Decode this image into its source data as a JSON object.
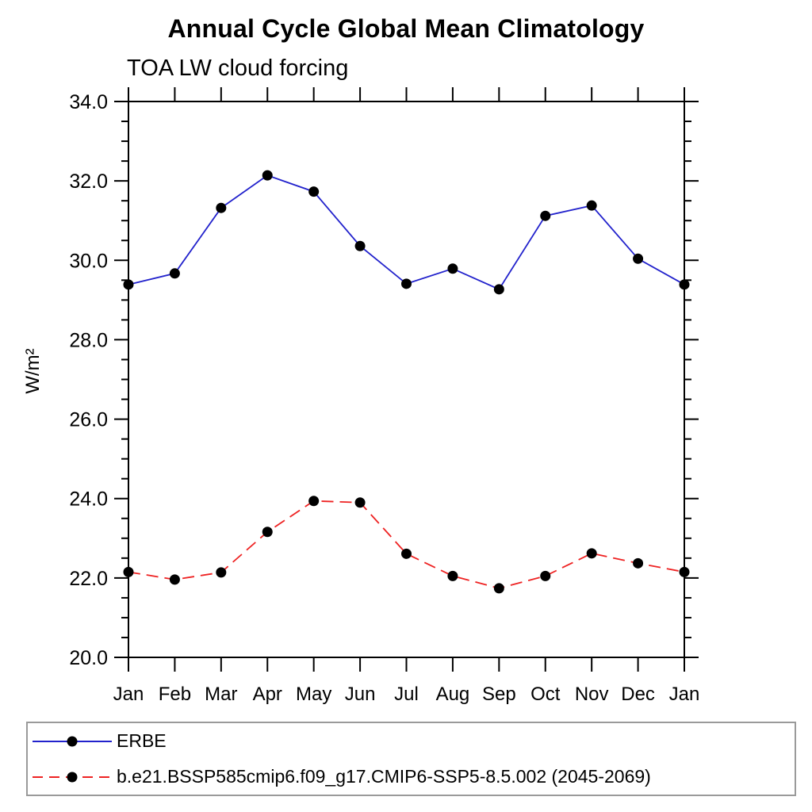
{
  "title": "Annual Cycle Global Mean Climatology",
  "subtitle": "TOA LW cloud forcing",
  "ylabel": "W/m²",
  "colors": {
    "erbe_line": "#2222cc",
    "model_line": "#ee2222",
    "marker": "#000000",
    "axis": "#000000",
    "legend_border": "#9a9a9a"
  },
  "chart_data": {
    "type": "line",
    "title": "Annual Cycle Global Mean Climatology",
    "subtitle": "TOA LW cloud forcing",
    "xlabel": "",
    "ylabel": "W/m²",
    "categories": [
      "Jan",
      "Feb",
      "Mar",
      "Apr",
      "May",
      "Jun",
      "Jul",
      "Aug",
      "Sep",
      "Oct",
      "Nov",
      "Dec",
      "Jan"
    ],
    "series": [
      {
        "name": "ERBE",
        "color": "#2222cc",
        "line_style": "solid",
        "marker": "filled-circle",
        "marker_color": "#000000",
        "values": [
          29.39,
          29.67,
          31.32,
          32.14,
          31.73,
          30.36,
          29.41,
          29.79,
          29.27,
          31.12,
          31.38,
          30.04,
          29.39
        ]
      },
      {
        "name": "b.e21.BSSP585cmip6.f09_g17.CMIP6-SSP5-8.5.002 (2045-2069)",
        "color": "#ee2222",
        "line_style": "dashed",
        "marker": "filled-circle",
        "marker_color": "#000000",
        "values": [
          22.15,
          21.96,
          22.14,
          23.16,
          23.94,
          23.9,
          22.61,
          22.05,
          21.74,
          22.05,
          22.62,
          22.37,
          22.15
        ]
      }
    ],
    "ylim": [
      20.0,
      34.0
    ],
    "ytick_step": 2.0,
    "ytick_minor_step": 0.5,
    "ytick_labels": [
      "20.0",
      "22.0",
      "24.0",
      "26.0",
      "28.0",
      "30.0",
      "32.0",
      "34.0"
    ],
    "grid": false,
    "legend_position": "bottom-left-box",
    "axis_style": "boxed-ticks-outward"
  }
}
